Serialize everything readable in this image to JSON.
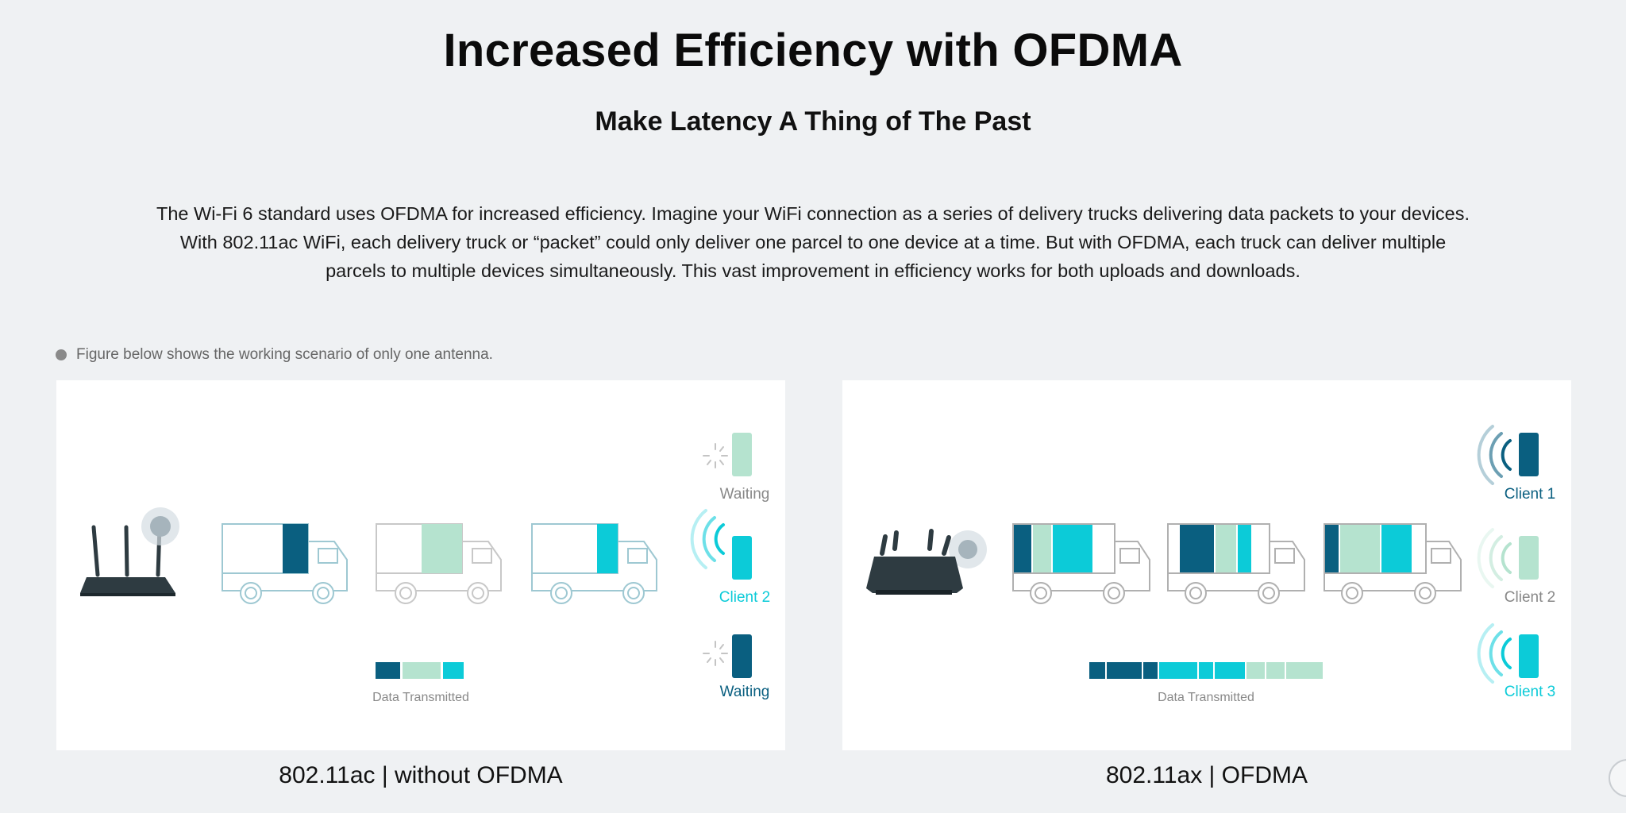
{
  "header": {
    "title": "Increased Efficiency with OFDMA",
    "subtitle": "Make Latency A Thing of The Past",
    "description": "The Wi-Fi 6 standard uses OFDMA for increased efficiency. Imagine your WiFi connection as a series of delivery trucks delivering data packets to your devices. With 802.11ac WiFi, each delivery truck or “packet” could only deliver one parcel to one device at a time. But with OFDMA, each truck can deliver multiple parcels to multiple devices simultaneously. This vast improvement in efficiency works for both uploads and downloads."
  },
  "note": {
    "text": "Figure below shows the working scenario of only one antenna."
  },
  "colors": {
    "dark_blue": "#0a5f80",
    "mint": "#b5e3cf",
    "cyan": "#0ccbd8",
    "router": "#2e3b41",
    "outline": "#9a9a9a",
    "muted_text": "#888888"
  },
  "panels": [
    {
      "caption": "802.11ac | without OFDMA",
      "data_label": "Data Transmitted",
      "clients": [
        {
          "label": "Waiting",
          "color": "mint",
          "status": "waiting"
        },
        {
          "label": "Client 2",
          "color": "cyan",
          "status": "receiving"
        },
        {
          "label": "Waiting",
          "color": "dark_blue",
          "status": "waiting"
        }
      ]
    },
    {
      "caption": "802.11ax | OFDMA",
      "data_label": "Data Transmitted",
      "clients": [
        {
          "label": "Client 1",
          "color": "dark_blue",
          "status": "receiving"
        },
        {
          "label": "Client 2",
          "color": "mint",
          "status": "receiving"
        },
        {
          "label": "Client 3",
          "color": "cyan",
          "status": "receiving"
        }
      ]
    }
  ]
}
